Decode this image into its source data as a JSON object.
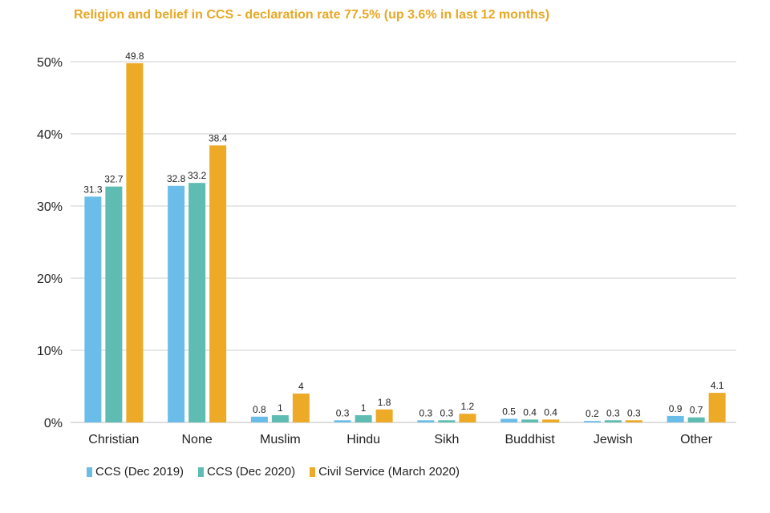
{
  "chart_data": {
    "type": "bar",
    "title": "Religion and belief in CCS - declaration rate 77.5% (up 3.6% in last 12 months)",
    "categories": [
      "Christian",
      "None",
      "Muslim",
      "Hindu",
      "Sikh",
      "Buddhist",
      "Jewish",
      "Other"
    ],
    "series": [
      {
        "name": "CCS (Dec 2019)",
        "color": "#6BBDE9",
        "values": [
          31.3,
          32.8,
          0.8,
          0.3,
          0.3,
          0.5,
          0.2,
          0.9
        ],
        "labels": [
          "31.3",
          "32.8",
          "0.8",
          "0.3",
          "0.3",
          "0.5",
          "0.2",
          "0.9"
        ]
      },
      {
        "name": "CCS (Dec 2020)",
        "color": "#5EBCB2",
        "values": [
          32.7,
          33.2,
          1,
          1,
          0.3,
          0.4,
          0.3,
          0.7
        ],
        "labels": [
          "32.7",
          "33.2",
          "1",
          "1",
          "0.3",
          "0.4",
          "0.3",
          "0.7"
        ]
      },
      {
        "name": "Civil Service (March 2020)",
        "color": "#EDAA27",
        "values": [
          49.8,
          38.4,
          4,
          1.8,
          1.2,
          0.4,
          0.3,
          4.1
        ],
        "labels": [
          "49.8",
          "38.4",
          "4",
          "1.8",
          "1.2",
          "0.4",
          "0.3",
          "4.1"
        ]
      }
    ],
    "yticks": [
      0,
      10,
      20,
      30,
      40,
      50
    ],
    "ytick_labels": [
      "0%",
      "10%",
      "20%",
      "30%",
      "40%",
      "50%"
    ],
    "ylim": [
      0,
      50
    ],
    "xlabel": "",
    "ylabel": "",
    "grid": true,
    "legend_position": "bottom-left"
  },
  "colors": {
    "title": "#E8A823",
    "grid": "#cfcfcf",
    "text": "#222222"
  }
}
